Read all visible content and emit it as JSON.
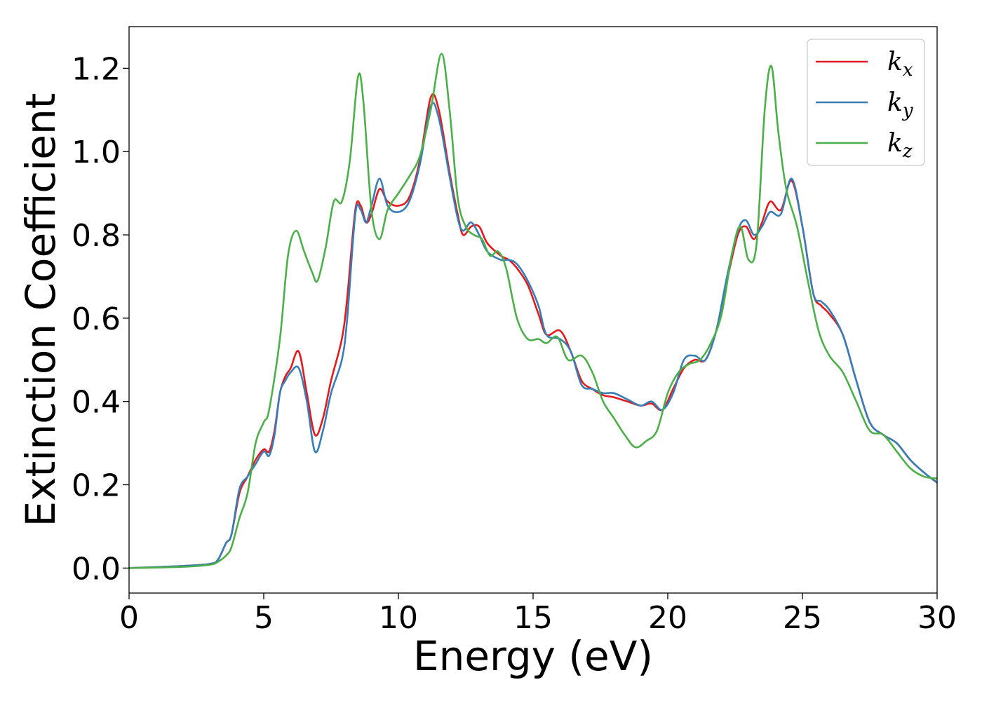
{
  "chart_data": {
    "type": "line",
    "title": "",
    "xlabel": "Energy (eV)",
    "ylabel": "Extinction Coefficient",
    "xlim": [
      0,
      30
    ],
    "ylim": [
      -0.06,
      1.3
    ],
    "xticks": [
      0,
      5,
      10,
      15,
      20,
      25,
      30
    ],
    "xtick_labels": [
      "0",
      "5",
      "10",
      "15",
      "20",
      "25",
      "30"
    ],
    "yticks": [
      0.0,
      0.2,
      0.4,
      0.6,
      0.8,
      1.0,
      1.2
    ],
    "ytick_labels": [
      "0.0",
      "0.2",
      "0.4",
      "0.6",
      "0.8",
      "1.0",
      "1.2"
    ],
    "grid": false,
    "legend_position": "top-right",
    "series": [
      {
        "name": "k",
        "subscript": "x",
        "color": "#e41a1c",
        "points": [
          [
            0,
            0
          ],
          [
            2,
            0.005
          ],
          [
            3,
            0.01
          ],
          [
            3.3,
            0.02
          ],
          [
            3.6,
            0.06
          ],
          [
            3.8,
            0.08
          ],
          [
            4.1,
            0.18
          ],
          [
            4.4,
            0.22
          ],
          [
            4.7,
            0.26
          ],
          [
            5.0,
            0.285
          ],
          [
            5.2,
            0.28
          ],
          [
            5.4,
            0.33
          ],
          [
            5.6,
            0.42
          ],
          [
            5.8,
            0.46
          ],
          [
            6.0,
            0.48
          ],
          [
            6.3,
            0.52
          ],
          [
            6.6,
            0.42
          ],
          [
            6.9,
            0.32
          ],
          [
            7.2,
            0.36
          ],
          [
            7.5,
            0.45
          ],
          [
            7.9,
            0.55
          ],
          [
            8.1,
            0.65
          ],
          [
            8.4,
            0.86
          ],
          [
            8.6,
            0.87
          ],
          [
            8.8,
            0.83
          ],
          [
            9.0,
            0.85
          ],
          [
            9.3,
            0.91
          ],
          [
            9.6,
            0.88
          ],
          [
            10.0,
            0.87
          ],
          [
            10.4,
            0.89
          ],
          [
            10.8,
            0.98
          ],
          [
            11.2,
            1.13
          ],
          [
            11.5,
            1.1
          ],
          [
            11.9,
            0.95
          ],
          [
            12.2,
            0.85
          ],
          [
            12.4,
            0.8
          ],
          [
            12.7,
            0.82
          ],
          [
            13.0,
            0.82
          ],
          [
            13.3,
            0.78
          ],
          [
            13.8,
            0.75
          ],
          [
            14.1,
            0.74
          ],
          [
            14.4,
            0.72
          ],
          [
            14.8,
            0.68
          ],
          [
            15.2,
            0.61
          ],
          [
            15.5,
            0.56
          ],
          [
            16.0,
            0.57
          ],
          [
            16.4,
            0.52
          ],
          [
            16.8,
            0.45
          ],
          [
            17.2,
            0.43
          ],
          [
            17.6,
            0.415
          ],
          [
            18.0,
            0.41
          ],
          [
            18.5,
            0.4
          ],
          [
            19.0,
            0.39
          ],
          [
            19.4,
            0.395
          ],
          [
            19.8,
            0.38
          ],
          [
            20.2,
            0.43
          ],
          [
            20.6,
            0.48
          ],
          [
            21.0,
            0.5
          ],
          [
            21.4,
            0.5
          ],
          [
            21.8,
            0.57
          ],
          [
            22.2,
            0.69
          ],
          [
            22.6,
            0.8
          ],
          [
            22.9,
            0.82
          ],
          [
            23.2,
            0.79
          ],
          [
            23.5,
            0.83
          ],
          [
            23.8,
            0.88
          ],
          [
            24.2,
            0.86
          ],
          [
            24.6,
            0.93
          ],
          [
            25.0,
            0.82
          ],
          [
            25.4,
            0.66
          ],
          [
            25.7,
            0.63
          ],
          [
            26.0,
            0.61
          ],
          [
            26.5,
            0.56
          ],
          [
            27.0,
            0.45
          ],
          [
            27.5,
            0.35
          ],
          [
            28.0,
            0.32
          ],
          [
            28.5,
            0.3
          ],
          [
            29.0,
            0.26
          ],
          [
            29.5,
            0.23
          ],
          [
            30.0,
            0.205
          ]
        ]
      },
      {
        "name": "k",
        "subscript": "y",
        "color": "#377eb8",
        "points": [
          [
            0,
            0
          ],
          [
            2,
            0.005
          ],
          [
            3,
            0.01
          ],
          [
            3.3,
            0.02
          ],
          [
            3.6,
            0.06
          ],
          [
            3.8,
            0.08
          ],
          [
            4.1,
            0.19
          ],
          [
            4.4,
            0.22
          ],
          [
            4.7,
            0.25
          ],
          [
            5.0,
            0.28
          ],
          [
            5.2,
            0.27
          ],
          [
            5.4,
            0.32
          ],
          [
            5.6,
            0.42
          ],
          [
            5.8,
            0.45
          ],
          [
            6.0,
            0.47
          ],
          [
            6.3,
            0.48
          ],
          [
            6.6,
            0.4
          ],
          [
            6.9,
            0.28
          ],
          [
            7.2,
            0.33
          ],
          [
            7.5,
            0.42
          ],
          [
            7.9,
            0.5
          ],
          [
            8.1,
            0.6
          ],
          [
            8.4,
            0.85
          ],
          [
            8.6,
            0.86
          ],
          [
            8.8,
            0.83
          ],
          [
            9.0,
            0.87
          ],
          [
            9.3,
            0.935
          ],
          [
            9.6,
            0.87
          ],
          [
            10.0,
            0.855
          ],
          [
            10.4,
            0.88
          ],
          [
            10.8,
            0.97
          ],
          [
            11.2,
            1.11
          ],
          [
            11.5,
            1.08
          ],
          [
            11.9,
            0.94
          ],
          [
            12.2,
            0.84
          ],
          [
            12.4,
            0.81
          ],
          [
            12.7,
            0.83
          ],
          [
            13.0,
            0.8
          ],
          [
            13.3,
            0.76
          ],
          [
            13.8,
            0.74
          ],
          [
            14.1,
            0.74
          ],
          [
            14.4,
            0.73
          ],
          [
            14.8,
            0.69
          ],
          [
            15.2,
            0.63
          ],
          [
            15.5,
            0.56
          ],
          [
            16.0,
            0.55
          ],
          [
            16.4,
            0.52
          ],
          [
            16.8,
            0.44
          ],
          [
            17.2,
            0.43
          ],
          [
            17.6,
            0.42
          ],
          [
            18.0,
            0.42
          ],
          [
            18.5,
            0.405
          ],
          [
            19.0,
            0.39
          ],
          [
            19.4,
            0.4
          ],
          [
            19.8,
            0.38
          ],
          [
            20.2,
            0.42
          ],
          [
            20.6,
            0.5
          ],
          [
            21.0,
            0.51
          ],
          [
            21.4,
            0.5
          ],
          [
            21.8,
            0.57
          ],
          [
            22.2,
            0.7
          ],
          [
            22.6,
            0.81
          ],
          [
            22.9,
            0.835
          ],
          [
            23.2,
            0.8
          ],
          [
            23.5,
            0.82
          ],
          [
            23.8,
            0.855
          ],
          [
            24.2,
            0.85
          ],
          [
            24.6,
            0.935
          ],
          [
            25.0,
            0.82
          ],
          [
            25.4,
            0.66
          ],
          [
            25.7,
            0.64
          ],
          [
            26.0,
            0.62
          ],
          [
            26.5,
            0.56
          ],
          [
            27.0,
            0.45
          ],
          [
            27.5,
            0.35
          ],
          [
            28.0,
            0.32
          ],
          [
            28.5,
            0.3
          ],
          [
            29.0,
            0.26
          ],
          [
            29.5,
            0.23
          ],
          [
            30.0,
            0.205
          ]
        ]
      },
      {
        "name": "k",
        "subscript": "z",
        "color": "#4daf4a",
        "points": [
          [
            0,
            0
          ],
          [
            2,
            0.003
          ],
          [
            3,
            0.008
          ],
          [
            3.3,
            0.015
          ],
          [
            3.6,
            0.03
          ],
          [
            3.8,
            0.05
          ],
          [
            4.1,
            0.12
          ],
          [
            4.4,
            0.18
          ],
          [
            4.7,
            0.3
          ],
          [
            5.0,
            0.35
          ],
          [
            5.2,
            0.38
          ],
          [
            5.6,
            0.55
          ],
          [
            5.9,
            0.75
          ],
          [
            6.2,
            0.81
          ],
          [
            6.5,
            0.76
          ],
          [
            6.8,
            0.71
          ],
          [
            7.0,
            0.69
          ],
          [
            7.3,
            0.77
          ],
          [
            7.6,
            0.88
          ],
          [
            7.9,
            0.88
          ],
          [
            8.2,
            0.98
          ],
          [
            8.5,
            1.18
          ],
          [
            8.7,
            1.12
          ],
          [
            9.0,
            0.86
          ],
          [
            9.3,
            0.79
          ],
          [
            9.6,
            0.86
          ],
          [
            10.0,
            0.9
          ],
          [
            10.4,
            0.94
          ],
          [
            10.8,
            0.99
          ],
          [
            11.2,
            1.1
          ],
          [
            11.6,
            1.235
          ],
          [
            11.9,
            1.1
          ],
          [
            12.2,
            0.89
          ],
          [
            12.5,
            0.82
          ],
          [
            12.8,
            0.8
          ],
          [
            13.1,
            0.79
          ],
          [
            13.4,
            0.75
          ],
          [
            13.7,
            0.76
          ],
          [
            14.0,
            0.72
          ],
          [
            14.4,
            0.6
          ],
          [
            14.8,
            0.55
          ],
          [
            15.2,
            0.55
          ],
          [
            15.5,
            0.54
          ],
          [
            15.9,
            0.555
          ],
          [
            16.3,
            0.5
          ],
          [
            16.8,
            0.51
          ],
          [
            17.2,
            0.47
          ],
          [
            17.6,
            0.4
          ],
          [
            18.0,
            0.36
          ],
          [
            18.4,
            0.32
          ],
          [
            18.8,
            0.29
          ],
          [
            19.2,
            0.305
          ],
          [
            19.6,
            0.33
          ],
          [
            20.0,
            0.42
          ],
          [
            20.4,
            0.47
          ],
          [
            20.8,
            0.49
          ],
          [
            21.2,
            0.5
          ],
          [
            21.6,
            0.54
          ],
          [
            22.0,
            0.61
          ],
          [
            22.4,
            0.76
          ],
          [
            22.7,
            0.82
          ],
          [
            23.0,
            0.74
          ],
          [
            23.3,
            0.78
          ],
          [
            23.6,
            1.1
          ],
          [
            23.85,
            1.205
          ],
          [
            24.1,
            1.05
          ],
          [
            24.4,
            0.91
          ],
          [
            24.8,
            0.82
          ],
          [
            25.2,
            0.69
          ],
          [
            25.6,
            0.57
          ],
          [
            26.0,
            0.51
          ],
          [
            26.5,
            0.47
          ],
          [
            27.0,
            0.4
          ],
          [
            27.5,
            0.33
          ],
          [
            28.0,
            0.32
          ],
          [
            28.5,
            0.28
          ],
          [
            29.0,
            0.24
          ],
          [
            29.5,
            0.22
          ],
          [
            30.0,
            0.215
          ]
        ]
      }
    ]
  }
}
